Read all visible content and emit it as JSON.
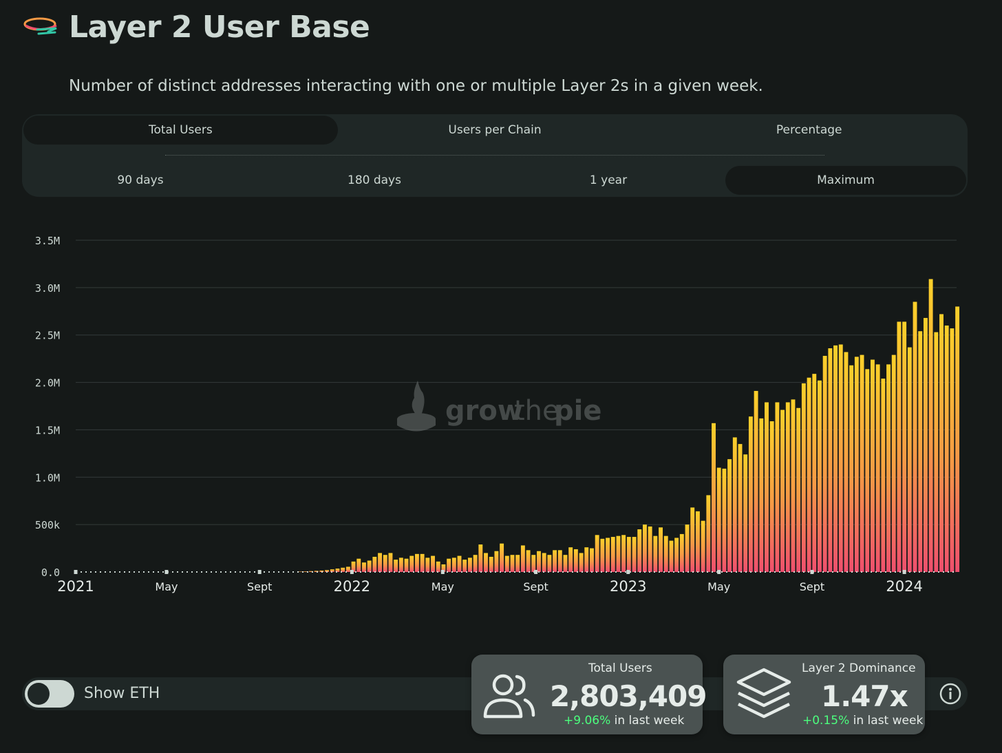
{
  "header": {
    "title": "Layer 2 User Base",
    "subtitle": "Number of distinct addresses interacting with one or multiple Layer 2s in a given week."
  },
  "tabs": [
    {
      "label": "Total Users",
      "active": true
    },
    {
      "label": "Users per Chain",
      "active": false
    },
    {
      "label": "Percentage",
      "active": false
    }
  ],
  "ranges": [
    {
      "label": "90 days",
      "active": false
    },
    {
      "label": "180 days",
      "active": false
    },
    {
      "label": "1 year",
      "active": false
    },
    {
      "label": "Maximum",
      "active": true
    }
  ],
  "watermark": {
    "text_grow": "grow",
    "text_the": "the",
    "text_pie": "pie"
  },
  "show_eth": {
    "label": "Show ETH",
    "on": false
  },
  "cards": {
    "total_users": {
      "label": "Total Users",
      "value": "2,803,409",
      "change": "+9.06%",
      "change_suffix": " in last week"
    },
    "dominance": {
      "label": "Layer 2 Dominance",
      "value": "1.47x",
      "change": "+0.15%",
      "change_suffix": " in last week"
    }
  },
  "colors": {
    "bar_top": "#fbd02a",
    "bar_mid": "#f59a45",
    "bar_bottom": "#ef4f6e",
    "background": "#151918",
    "panel": "#1f2726",
    "positive": "#4cff7e"
  },
  "chart_data": {
    "type": "bar",
    "title": "",
    "xlabel": "",
    "ylabel": "",
    "ylim": [
      0,
      3500000
    ],
    "yticks": [
      0,
      500000,
      1000000,
      1500000,
      2000000,
      2500000,
      3000000,
      3500000
    ],
    "ytick_labels": [
      "0.0",
      "500k",
      "1.0M",
      "1.5M",
      "2.0M",
      "2.5M",
      "3.0M",
      "3.5M"
    ],
    "xlim": [
      "2021-01-01",
      "2024-03-10"
    ],
    "xticks": [
      {
        "date": "2021-01-01",
        "label": "2021",
        "major": true
      },
      {
        "date": "2021-05-01",
        "label": "May",
        "major": false
      },
      {
        "date": "2021-09-01",
        "label": "Sept",
        "major": false
      },
      {
        "date": "2022-01-01",
        "label": "2022",
        "major": true
      },
      {
        "date": "2022-05-01",
        "label": "May",
        "major": false
      },
      {
        "date": "2022-09-01",
        "label": "Sept",
        "major": false
      },
      {
        "date": "2023-01-01",
        "label": "2023",
        "major": true
      },
      {
        "date": "2023-05-01",
        "label": "May",
        "major": false
      },
      {
        "date": "2023-09-01",
        "label": "Sept",
        "major": false
      },
      {
        "date": "2024-01-01",
        "label": "2024",
        "major": true
      }
    ],
    "grid": true,
    "legend": "none",
    "bar_interval": "weekly",
    "first_bar_date": "2021-01-04",
    "series": [
      {
        "values": [
          0,
          0,
          0,
          0,
          0,
          0,
          0,
          0,
          0,
          0,
          0,
          0,
          0,
          0,
          0,
          0,
          0,
          0,
          0,
          0,
          0,
          0,
          0,
          0,
          0,
          0,
          0,
          0,
          0,
          0,
          0,
          0,
          0,
          0,
          0,
          0,
          0,
          0,
          0,
          0,
          0,
          0,
          4000,
          6000,
          9000,
          12000,
          15000,
          20000,
          28000,
          36000,
          45000,
          55000,
          110000,
          140000,
          100000,
          120000,
          160000,
          200000,
          180000,
          200000,
          130000,
          150000,
          140000,
          170000,
          190000,
          190000,
          150000,
          170000,
          110000,
          80000,
          140000,
          150000,
          170000,
          130000,
          150000,
          180000,
          290000,
          200000,
          160000,
          220000,
          300000,
          170000,
          180000,
          180000,
          280000,
          230000,
          180000,
          220000,
          200000,
          180000,
          230000,
          230000,
          180000,
          260000,
          240000,
          200000,
          260000,
          250000,
          390000,
          350000,
          360000,
          370000,
          380000,
          390000,
          370000,
          370000,
          450000,
          500000,
          480000,
          380000,
          470000,
          380000,
          330000,
          360000,
          400000,
          500000,
          680000,
          640000,
          540000,
          810000,
          1570000,
          1100000,
          1090000,
          1190000,
          1420000,
          1350000,
          1240000,
          1640000,
          1910000,
          1620000,
          1790000,
          1590000,
          1790000,
          1710000,
          1790000,
          1820000,
          1730000,
          1990000,
          2050000,
          2090000,
          2020000,
          2280000,
          2360000,
          2390000,
          2400000,
          2320000,
          2180000,
          2270000,
          2290000,
          2140000,
          2240000,
          2190000,
          2040000,
          2190000,
          2290000,
          2640000,
          2640000,
          2370000,
          2850000,
          2540000,
          2680000,
          3090000,
          2530000,
          2720000,
          2600000,
          2570000,
          2800000
        ]
      }
    ]
  }
}
